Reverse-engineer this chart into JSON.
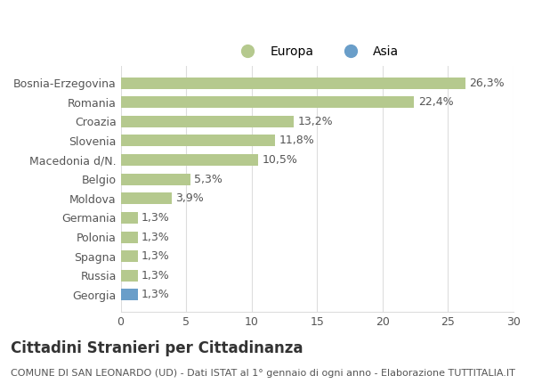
{
  "categories": [
    "Bosnia-Erzegovina",
    "Romania",
    "Croazia",
    "Slovenia",
    "Macedonia d/N.",
    "Belgio",
    "Moldova",
    "Germania",
    "Polonia",
    "Spagna",
    "Russia",
    "Georgia"
  ],
  "values": [
    26.3,
    22.4,
    13.2,
    11.8,
    10.5,
    5.3,
    3.9,
    1.3,
    1.3,
    1.3,
    1.3,
    1.3
  ],
  "labels": [
    "26,3%",
    "22,4%",
    "13,2%",
    "11,8%",
    "10,5%",
    "5,3%",
    "3,9%",
    "1,3%",
    "1,3%",
    "1,3%",
    "1,3%",
    "1,3%"
  ],
  "bar_colors": [
    "#b5c98e",
    "#b5c98e",
    "#b5c98e",
    "#b5c98e",
    "#b5c98e",
    "#b5c98e",
    "#b5c98e",
    "#b5c98e",
    "#b5c98e",
    "#b5c98e",
    "#b5c98e",
    "#6a9ec9"
  ],
  "europa_color": "#b5c98e",
  "asia_color": "#6a9ec9",
  "xlim": [
    0,
    30
  ],
  "xticks": [
    0,
    5,
    10,
    15,
    20,
    25,
    30
  ],
  "title": "Cittadini Stranieri per Cittadinanza",
  "subtitle": "COMUNE DI SAN LEONARDO (UD) - Dati ISTAT al 1° gennaio di ogni anno - Elaborazione TUTTITALIA.IT",
  "legend_europa": "Europa",
  "legend_asia": "Asia",
  "background_color": "#ffffff",
  "grid_color": "#dddddd",
  "bar_height": 0.6,
  "label_fontsize": 9,
  "tick_fontsize": 9,
  "title_fontsize": 12,
  "subtitle_fontsize": 8
}
